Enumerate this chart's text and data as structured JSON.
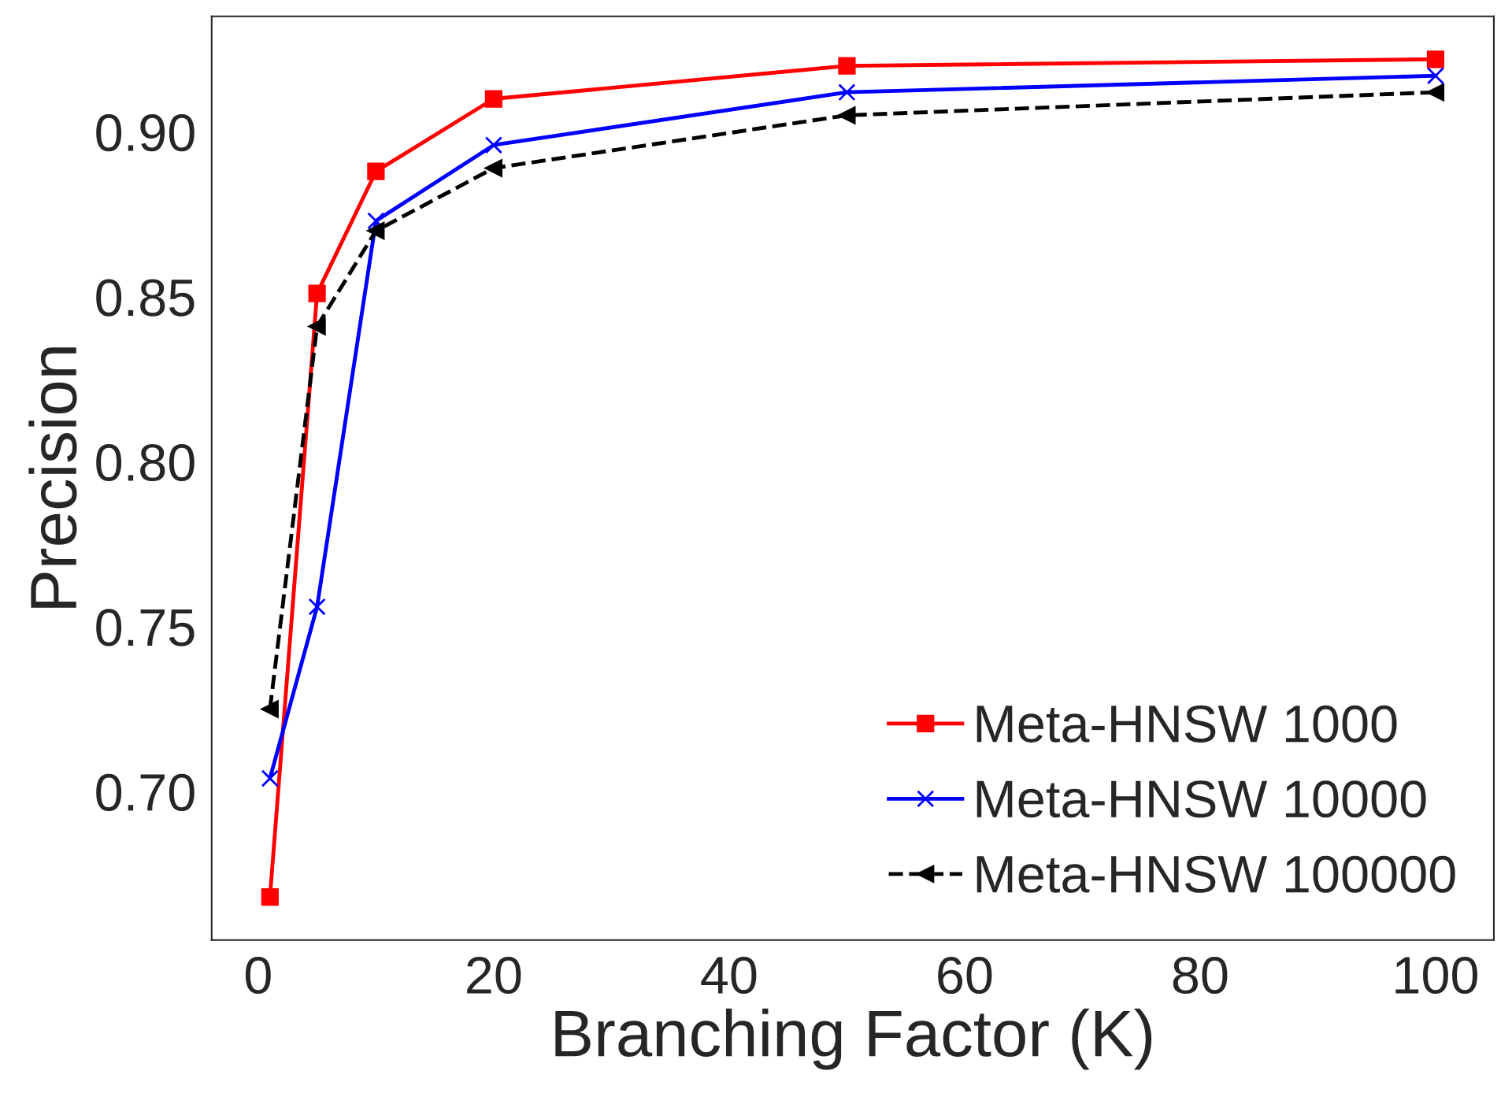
{
  "chart_data": {
    "type": "line",
    "xlabel": "Branching Factor (K)",
    "ylabel": "Precision",
    "x": [
      1,
      5,
      10,
      20,
      50,
      100
    ],
    "series": [
      {
        "name": "Meta-HNSW 1000",
        "color": "#ff0000",
        "marker": "square",
        "line_style": "solid",
        "values": [
          0.668,
          0.851,
          0.888,
          0.91,
          0.92,
          0.922
        ]
      },
      {
        "name": "Meta-HNSW 10000",
        "color": "#0000ff",
        "marker": "cross",
        "line_style": "solid",
        "values": [
          0.704,
          0.756,
          0.873,
          0.896,
          0.912,
          0.917
        ]
      },
      {
        "name": "Meta-HNSW 100000",
        "color": "#000000",
        "marker": "triangle",
        "line_style": "dashed",
        "values": [
          0.725,
          0.841,
          0.87,
          0.889,
          0.905,
          0.912
        ]
      }
    ],
    "xlim": [
      -3.95,
      104.95
    ],
    "xticks": [
      0,
      20,
      40,
      60,
      80,
      100
    ],
    "ylim": [
      0.655,
      0.935
    ],
    "yticks": [
      {
        "value": 0.7,
        "label": "0.70"
      },
      0.75,
      {
        "value": 0.8,
        "label": "0.80"
      },
      0.85,
      {
        "value": 0.9,
        "label": "0.90"
      }
    ],
    "grid": false,
    "legend": "bottom right"
  }
}
